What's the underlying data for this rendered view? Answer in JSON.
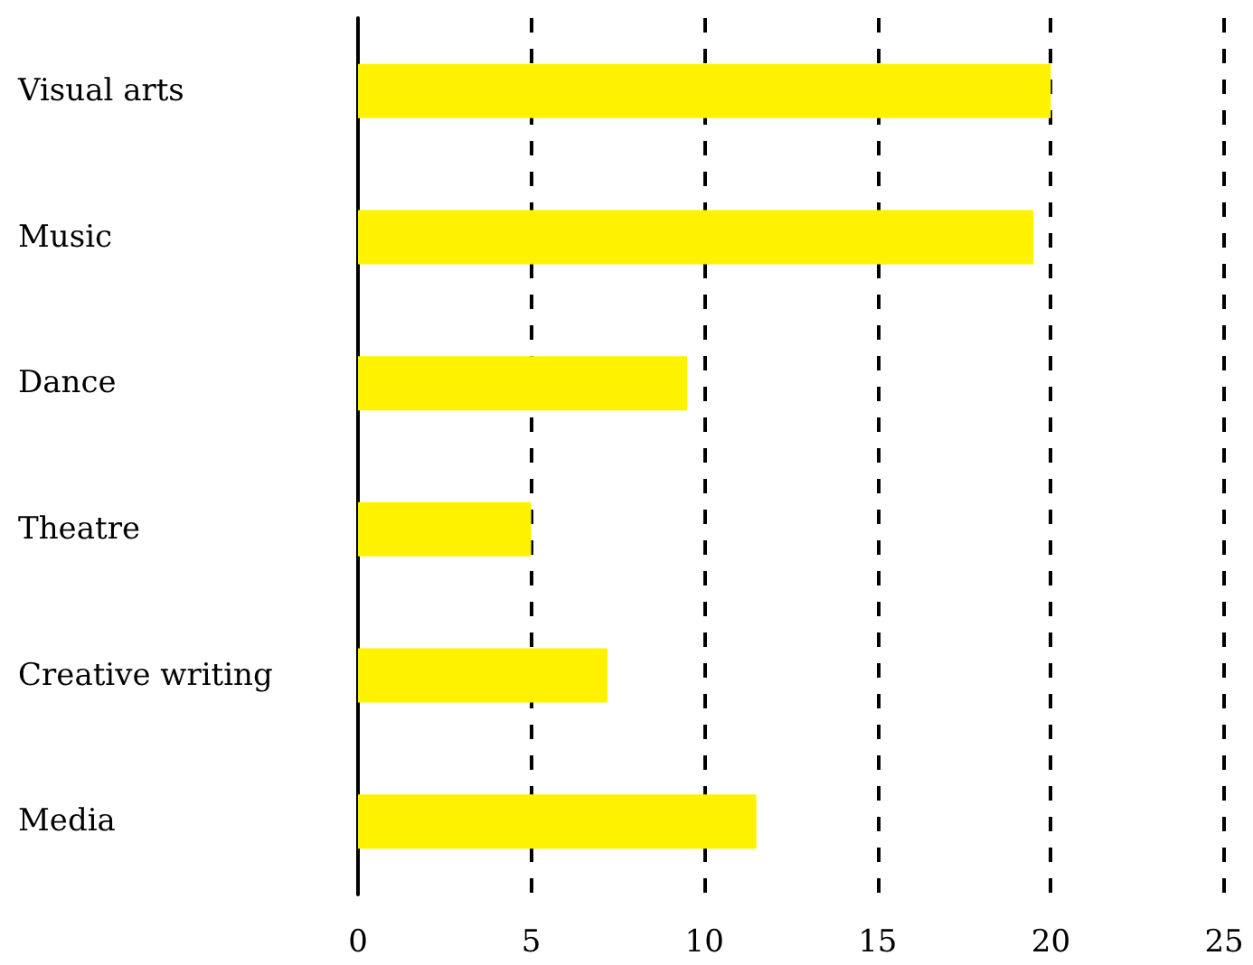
{
  "chart_data": {
    "type": "bar",
    "orientation": "horizontal",
    "categories": [
      "Visual arts",
      "Music",
      "Dance",
      "Theatre",
      "Creative writing",
      "Media"
    ],
    "values": [
      20,
      19.5,
      9.5,
      5,
      7.2,
      11.5
    ],
    "color": "#fff200",
    "xlim": [
      0,
      25
    ],
    "xticks": [
      0,
      5,
      10,
      15,
      20,
      25
    ],
    "grid": "x"
  }
}
